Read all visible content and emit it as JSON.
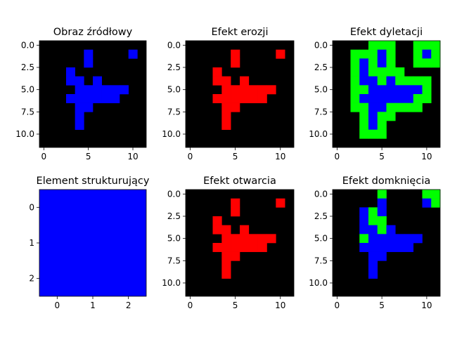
{
  "colors": {
    "background": "#000000",
    "source": "#0000ff",
    "red": "#ff0000",
    "green": "#00ff00",
    "blue": "#0000ff"
  },
  "chart_data": [
    {
      "type": "heatmap",
      "title": "Obraz źródłowy",
      "rows": 12,
      "cols": 12,
      "xticks": [
        "0",
        "5",
        "10"
      ],
      "yticks": [
        "0.0",
        "2.5",
        "5.0",
        "7.5",
        "10.0"
      ],
      "cells": [
        {
          "x": 5,
          "y": 1,
          "color": "#0000ff"
        },
        {
          "x": 5,
          "y": 2,
          "color": "#0000ff"
        },
        {
          "x": 10,
          "y": 1,
          "color": "#0000ff"
        },
        {
          "x": 3,
          "y": 3,
          "color": "#0000ff"
        },
        {
          "x": 3,
          "y": 4,
          "color": "#0000ff"
        },
        {
          "x": 4,
          "y": 4,
          "color": "#0000ff"
        },
        {
          "x": 6,
          "y": 4,
          "color": "#0000ff"
        },
        {
          "x": 4,
          "y": 5,
          "color": "#0000ff"
        },
        {
          "x": 5,
          "y": 5,
          "color": "#0000ff"
        },
        {
          "x": 6,
          "y": 5,
          "color": "#0000ff"
        },
        {
          "x": 7,
          "y": 5,
          "color": "#0000ff"
        },
        {
          "x": 8,
          "y": 5,
          "color": "#0000ff"
        },
        {
          "x": 9,
          "y": 5,
          "color": "#0000ff"
        },
        {
          "x": 3,
          "y": 6,
          "color": "#0000ff"
        },
        {
          "x": 4,
          "y": 6,
          "color": "#0000ff"
        },
        {
          "x": 5,
          "y": 6,
          "color": "#0000ff"
        },
        {
          "x": 6,
          "y": 6,
          "color": "#0000ff"
        },
        {
          "x": 7,
          "y": 6,
          "color": "#0000ff"
        },
        {
          "x": 8,
          "y": 6,
          "color": "#0000ff"
        },
        {
          "x": 4,
          "y": 7,
          "color": "#0000ff"
        },
        {
          "x": 5,
          "y": 7,
          "color": "#0000ff"
        },
        {
          "x": 4,
          "y": 8,
          "color": "#0000ff"
        },
        {
          "x": 4,
          "y": 9,
          "color": "#0000ff"
        }
      ]
    },
    {
      "type": "heatmap",
      "title": "Efekt erozji",
      "rows": 12,
      "cols": 12,
      "xticks": [
        "0",
        "5",
        "10"
      ],
      "yticks": [
        "0.0",
        "2.5",
        "5.0",
        "7.5",
        "10.0"
      ],
      "cells": [
        {
          "x": 5,
          "y": 1,
          "color": "#ff0000"
        },
        {
          "x": 5,
          "y": 2,
          "color": "#ff0000"
        },
        {
          "x": 10,
          "y": 1,
          "color": "#ff0000"
        },
        {
          "x": 3,
          "y": 3,
          "color": "#ff0000"
        },
        {
          "x": 3,
          "y": 4,
          "color": "#ff0000"
        },
        {
          "x": 4,
          "y": 4,
          "color": "#ff0000"
        },
        {
          "x": 6,
          "y": 4,
          "color": "#ff0000"
        },
        {
          "x": 4,
          "y": 5,
          "color": "#ff0000"
        },
        {
          "x": 5,
          "y": 5,
          "color": "#ff0000"
        },
        {
          "x": 6,
          "y": 5,
          "color": "#ff0000"
        },
        {
          "x": 7,
          "y": 5,
          "color": "#ff0000"
        },
        {
          "x": 8,
          "y": 5,
          "color": "#ff0000"
        },
        {
          "x": 9,
          "y": 5,
          "color": "#ff0000"
        },
        {
          "x": 3,
          "y": 6,
          "color": "#ff0000"
        },
        {
          "x": 4,
          "y": 6,
          "color": "#ff0000"
        },
        {
          "x": 5,
          "y": 6,
          "color": "#ff0000"
        },
        {
          "x": 6,
          "y": 6,
          "color": "#ff0000"
        },
        {
          "x": 7,
          "y": 6,
          "color": "#ff0000"
        },
        {
          "x": 8,
          "y": 6,
          "color": "#ff0000"
        },
        {
          "x": 4,
          "y": 7,
          "color": "#ff0000"
        },
        {
          "x": 5,
          "y": 7,
          "color": "#ff0000"
        },
        {
          "x": 4,
          "y": 8,
          "color": "#ff0000"
        },
        {
          "x": 4,
          "y": 9,
          "color": "#ff0000"
        }
      ]
    },
    {
      "type": "heatmap",
      "title": "Efekt dyletacji",
      "rows": 12,
      "cols": 12,
      "xticks": [
        "0",
        "5",
        "10"
      ],
      "yticks": [
        "0.0",
        "2.5",
        "5.0",
        "7.5",
        "10.0"
      ],
      "cells": [
        {
          "x": 4,
          "y": 0,
          "color": "#00ff00"
        },
        {
          "x": 5,
          "y": 0,
          "color": "#00ff00"
        },
        {
          "x": 6,
          "y": 0,
          "color": "#00ff00"
        },
        {
          "x": 9,
          "y": 0,
          "color": "#00ff00"
        },
        {
          "x": 10,
          "y": 0,
          "color": "#00ff00"
        },
        {
          "x": 11,
          "y": 0,
          "color": "#00ff00"
        },
        {
          "x": 2,
          "y": 1,
          "color": "#00ff00"
        },
        {
          "x": 3,
          "y": 1,
          "color": "#00ff00"
        },
        {
          "x": 4,
          "y": 1,
          "color": "#00ff00"
        },
        {
          "x": 5,
          "y": 1,
          "color": "#0000ff"
        },
        {
          "x": 6,
          "y": 1,
          "color": "#00ff00"
        },
        {
          "x": 9,
          "y": 1,
          "color": "#00ff00"
        },
        {
          "x": 10,
          "y": 1,
          "color": "#0000ff"
        },
        {
          "x": 11,
          "y": 1,
          "color": "#00ff00"
        },
        {
          "x": 2,
          "y": 2,
          "color": "#00ff00"
        },
        {
          "x": 3,
          "y": 2,
          "color": "#0000ff"
        },
        {
          "x": 4,
          "y": 2,
          "color": "#00ff00"
        },
        {
          "x": 5,
          "y": 2,
          "color": "#0000ff"
        },
        {
          "x": 6,
          "y": 2,
          "color": "#00ff00"
        },
        {
          "x": 9,
          "y": 2,
          "color": "#00ff00"
        },
        {
          "x": 10,
          "y": 2,
          "color": "#00ff00"
        },
        {
          "x": 11,
          "y": 2,
          "color": "#00ff00"
        },
        {
          "x": 2,
          "y": 3,
          "color": "#00ff00"
        },
        {
          "x": 3,
          "y": 3,
          "color": "#0000ff"
        },
        {
          "x": 4,
          "y": 3,
          "color": "#00ff00"
        },
        {
          "x": 5,
          "y": 3,
          "color": "#00ff00"
        },
        {
          "x": 6,
          "y": 3,
          "color": "#00ff00"
        },
        {
          "x": 7,
          "y": 3,
          "color": "#00ff00"
        },
        {
          "x": 2,
          "y": 4,
          "color": "#00ff00"
        },
        {
          "x": 3,
          "y": 4,
          "color": "#0000ff"
        },
        {
          "x": 4,
          "y": 4,
          "color": "#0000ff"
        },
        {
          "x": 5,
          "y": 4,
          "color": "#00ff00"
        },
        {
          "x": 6,
          "y": 4,
          "color": "#0000ff"
        },
        {
          "x": 7,
          "y": 4,
          "color": "#00ff00"
        },
        {
          "x": 8,
          "y": 4,
          "color": "#00ff00"
        },
        {
          "x": 9,
          "y": 4,
          "color": "#00ff00"
        },
        {
          "x": 10,
          "y": 4,
          "color": "#00ff00"
        },
        {
          "x": 2,
          "y": 5,
          "color": "#00ff00"
        },
        {
          "x": 3,
          "y": 5,
          "color": "#00ff00"
        },
        {
          "x": 4,
          "y": 5,
          "color": "#0000ff"
        },
        {
          "x": 5,
          "y": 5,
          "color": "#0000ff"
        },
        {
          "x": 6,
          "y": 5,
          "color": "#0000ff"
        },
        {
          "x": 7,
          "y": 5,
          "color": "#0000ff"
        },
        {
          "x": 8,
          "y": 5,
          "color": "#0000ff"
        },
        {
          "x": 9,
          "y": 5,
          "color": "#0000ff"
        },
        {
          "x": 10,
          "y": 5,
          "color": "#00ff00"
        },
        {
          "x": 2,
          "y": 6,
          "color": "#00ff00"
        },
        {
          "x": 3,
          "y": 6,
          "color": "#0000ff"
        },
        {
          "x": 4,
          "y": 6,
          "color": "#0000ff"
        },
        {
          "x": 5,
          "y": 6,
          "color": "#0000ff"
        },
        {
          "x": 6,
          "y": 6,
          "color": "#0000ff"
        },
        {
          "x": 7,
          "y": 6,
          "color": "#0000ff"
        },
        {
          "x": 8,
          "y": 6,
          "color": "#0000ff"
        },
        {
          "x": 9,
          "y": 6,
          "color": "#00ff00"
        },
        {
          "x": 10,
          "y": 6,
          "color": "#00ff00"
        },
        {
          "x": 2,
          "y": 7,
          "color": "#00ff00"
        },
        {
          "x": 3,
          "y": 7,
          "color": "#00ff00"
        },
        {
          "x": 4,
          "y": 7,
          "color": "#0000ff"
        },
        {
          "x": 5,
          "y": 7,
          "color": "#0000ff"
        },
        {
          "x": 6,
          "y": 7,
          "color": "#00ff00"
        },
        {
          "x": 7,
          "y": 7,
          "color": "#00ff00"
        },
        {
          "x": 8,
          "y": 7,
          "color": "#00ff00"
        },
        {
          "x": 9,
          "y": 7,
          "color": "#00ff00"
        },
        {
          "x": 3,
          "y": 8,
          "color": "#00ff00"
        },
        {
          "x": 4,
          "y": 8,
          "color": "#0000ff"
        },
        {
          "x": 5,
          "y": 8,
          "color": "#00ff00"
        },
        {
          "x": 6,
          "y": 8,
          "color": "#00ff00"
        },
        {
          "x": 3,
          "y": 9,
          "color": "#00ff00"
        },
        {
          "x": 4,
          "y": 9,
          "color": "#0000ff"
        },
        {
          "x": 5,
          "y": 9,
          "color": "#00ff00"
        },
        {
          "x": 3,
          "y": 10,
          "color": "#00ff00"
        },
        {
          "x": 4,
          "y": 10,
          "color": "#00ff00"
        },
        {
          "x": 5,
          "y": 10,
          "color": "#00ff00"
        }
      ]
    },
    {
      "type": "heatmap",
      "title": "Element strukturujący",
      "rows": 3,
      "cols": 3,
      "xticks": [
        "0",
        "1",
        "2"
      ],
      "yticks": [
        "0",
        "1",
        "2"
      ],
      "fill": "#0000ff",
      "cells": []
    },
    {
      "type": "heatmap",
      "title": "Efekt otwarcia",
      "rows": 12,
      "cols": 12,
      "xticks": [
        "0",
        "5",
        "10"
      ],
      "yticks": [
        "0.0",
        "2.5",
        "5.0",
        "7.5",
        "10.0"
      ],
      "cells": [
        {
          "x": 5,
          "y": 1,
          "color": "#ff0000"
        },
        {
          "x": 5,
          "y": 2,
          "color": "#ff0000"
        },
        {
          "x": 10,
          "y": 1,
          "color": "#ff0000"
        },
        {
          "x": 3,
          "y": 3,
          "color": "#ff0000"
        },
        {
          "x": 3,
          "y": 4,
          "color": "#ff0000"
        },
        {
          "x": 4,
          "y": 4,
          "color": "#ff0000"
        },
        {
          "x": 6,
          "y": 4,
          "color": "#ff0000"
        },
        {
          "x": 4,
          "y": 5,
          "color": "#ff0000"
        },
        {
          "x": 5,
          "y": 5,
          "color": "#ff0000"
        },
        {
          "x": 6,
          "y": 5,
          "color": "#ff0000"
        },
        {
          "x": 7,
          "y": 5,
          "color": "#ff0000"
        },
        {
          "x": 8,
          "y": 5,
          "color": "#ff0000"
        },
        {
          "x": 9,
          "y": 5,
          "color": "#ff0000"
        },
        {
          "x": 3,
          "y": 6,
          "color": "#ff0000"
        },
        {
          "x": 4,
          "y": 6,
          "color": "#ff0000"
        },
        {
          "x": 5,
          "y": 6,
          "color": "#ff0000"
        },
        {
          "x": 6,
          "y": 6,
          "color": "#ff0000"
        },
        {
          "x": 7,
          "y": 6,
          "color": "#ff0000"
        },
        {
          "x": 8,
          "y": 6,
          "color": "#ff0000"
        },
        {
          "x": 4,
          "y": 7,
          "color": "#ff0000"
        },
        {
          "x": 5,
          "y": 7,
          "color": "#ff0000"
        },
        {
          "x": 4,
          "y": 8,
          "color": "#ff0000"
        },
        {
          "x": 4,
          "y": 9,
          "color": "#ff0000"
        }
      ]
    },
    {
      "type": "heatmap",
      "title": "Efekt domknięcia",
      "rows": 12,
      "cols": 12,
      "xticks": [
        "0",
        "5",
        "10"
      ],
      "yticks": [
        "0.0",
        "2.5",
        "5.0",
        "7.5",
        "10.0"
      ],
      "cells": [
        {
          "x": 5,
          "y": 0,
          "color": "#00ff00"
        },
        {
          "x": 10,
          "y": 0,
          "color": "#00ff00"
        },
        {
          "x": 11,
          "y": 0,
          "color": "#00ff00"
        },
        {
          "x": 5,
          "y": 1,
          "color": "#0000ff"
        },
        {
          "x": 10,
          "y": 1,
          "color": "#0000ff"
        },
        {
          "x": 11,
          "y": 1,
          "color": "#00ff00"
        },
        {
          "x": 3,
          "y": 2,
          "color": "#0000ff"
        },
        {
          "x": 4,
          "y": 2,
          "color": "#00ff00"
        },
        {
          "x": 5,
          "y": 2,
          "color": "#0000ff"
        },
        {
          "x": 3,
          "y": 3,
          "color": "#0000ff"
        },
        {
          "x": 4,
          "y": 3,
          "color": "#00ff00"
        },
        {
          "x": 5,
          "y": 3,
          "color": "#00ff00"
        },
        {
          "x": 3,
          "y": 4,
          "color": "#0000ff"
        },
        {
          "x": 4,
          "y": 4,
          "color": "#0000ff"
        },
        {
          "x": 5,
          "y": 4,
          "color": "#00ff00"
        },
        {
          "x": 6,
          "y": 4,
          "color": "#0000ff"
        },
        {
          "x": 3,
          "y": 5,
          "color": "#00ff00"
        },
        {
          "x": 4,
          "y": 5,
          "color": "#0000ff"
        },
        {
          "x": 5,
          "y": 5,
          "color": "#0000ff"
        },
        {
          "x": 6,
          "y": 5,
          "color": "#0000ff"
        },
        {
          "x": 7,
          "y": 5,
          "color": "#0000ff"
        },
        {
          "x": 8,
          "y": 5,
          "color": "#0000ff"
        },
        {
          "x": 9,
          "y": 5,
          "color": "#0000ff"
        },
        {
          "x": 3,
          "y": 6,
          "color": "#0000ff"
        },
        {
          "x": 4,
          "y": 6,
          "color": "#0000ff"
        },
        {
          "x": 5,
          "y": 6,
          "color": "#0000ff"
        },
        {
          "x": 6,
          "y": 6,
          "color": "#0000ff"
        },
        {
          "x": 7,
          "y": 6,
          "color": "#0000ff"
        },
        {
          "x": 8,
          "y": 6,
          "color": "#0000ff"
        },
        {
          "x": 4,
          "y": 7,
          "color": "#0000ff"
        },
        {
          "x": 5,
          "y": 7,
          "color": "#0000ff"
        },
        {
          "x": 4,
          "y": 8,
          "color": "#0000ff"
        },
        {
          "x": 4,
          "y": 9,
          "color": "#0000ff"
        }
      ]
    }
  ]
}
